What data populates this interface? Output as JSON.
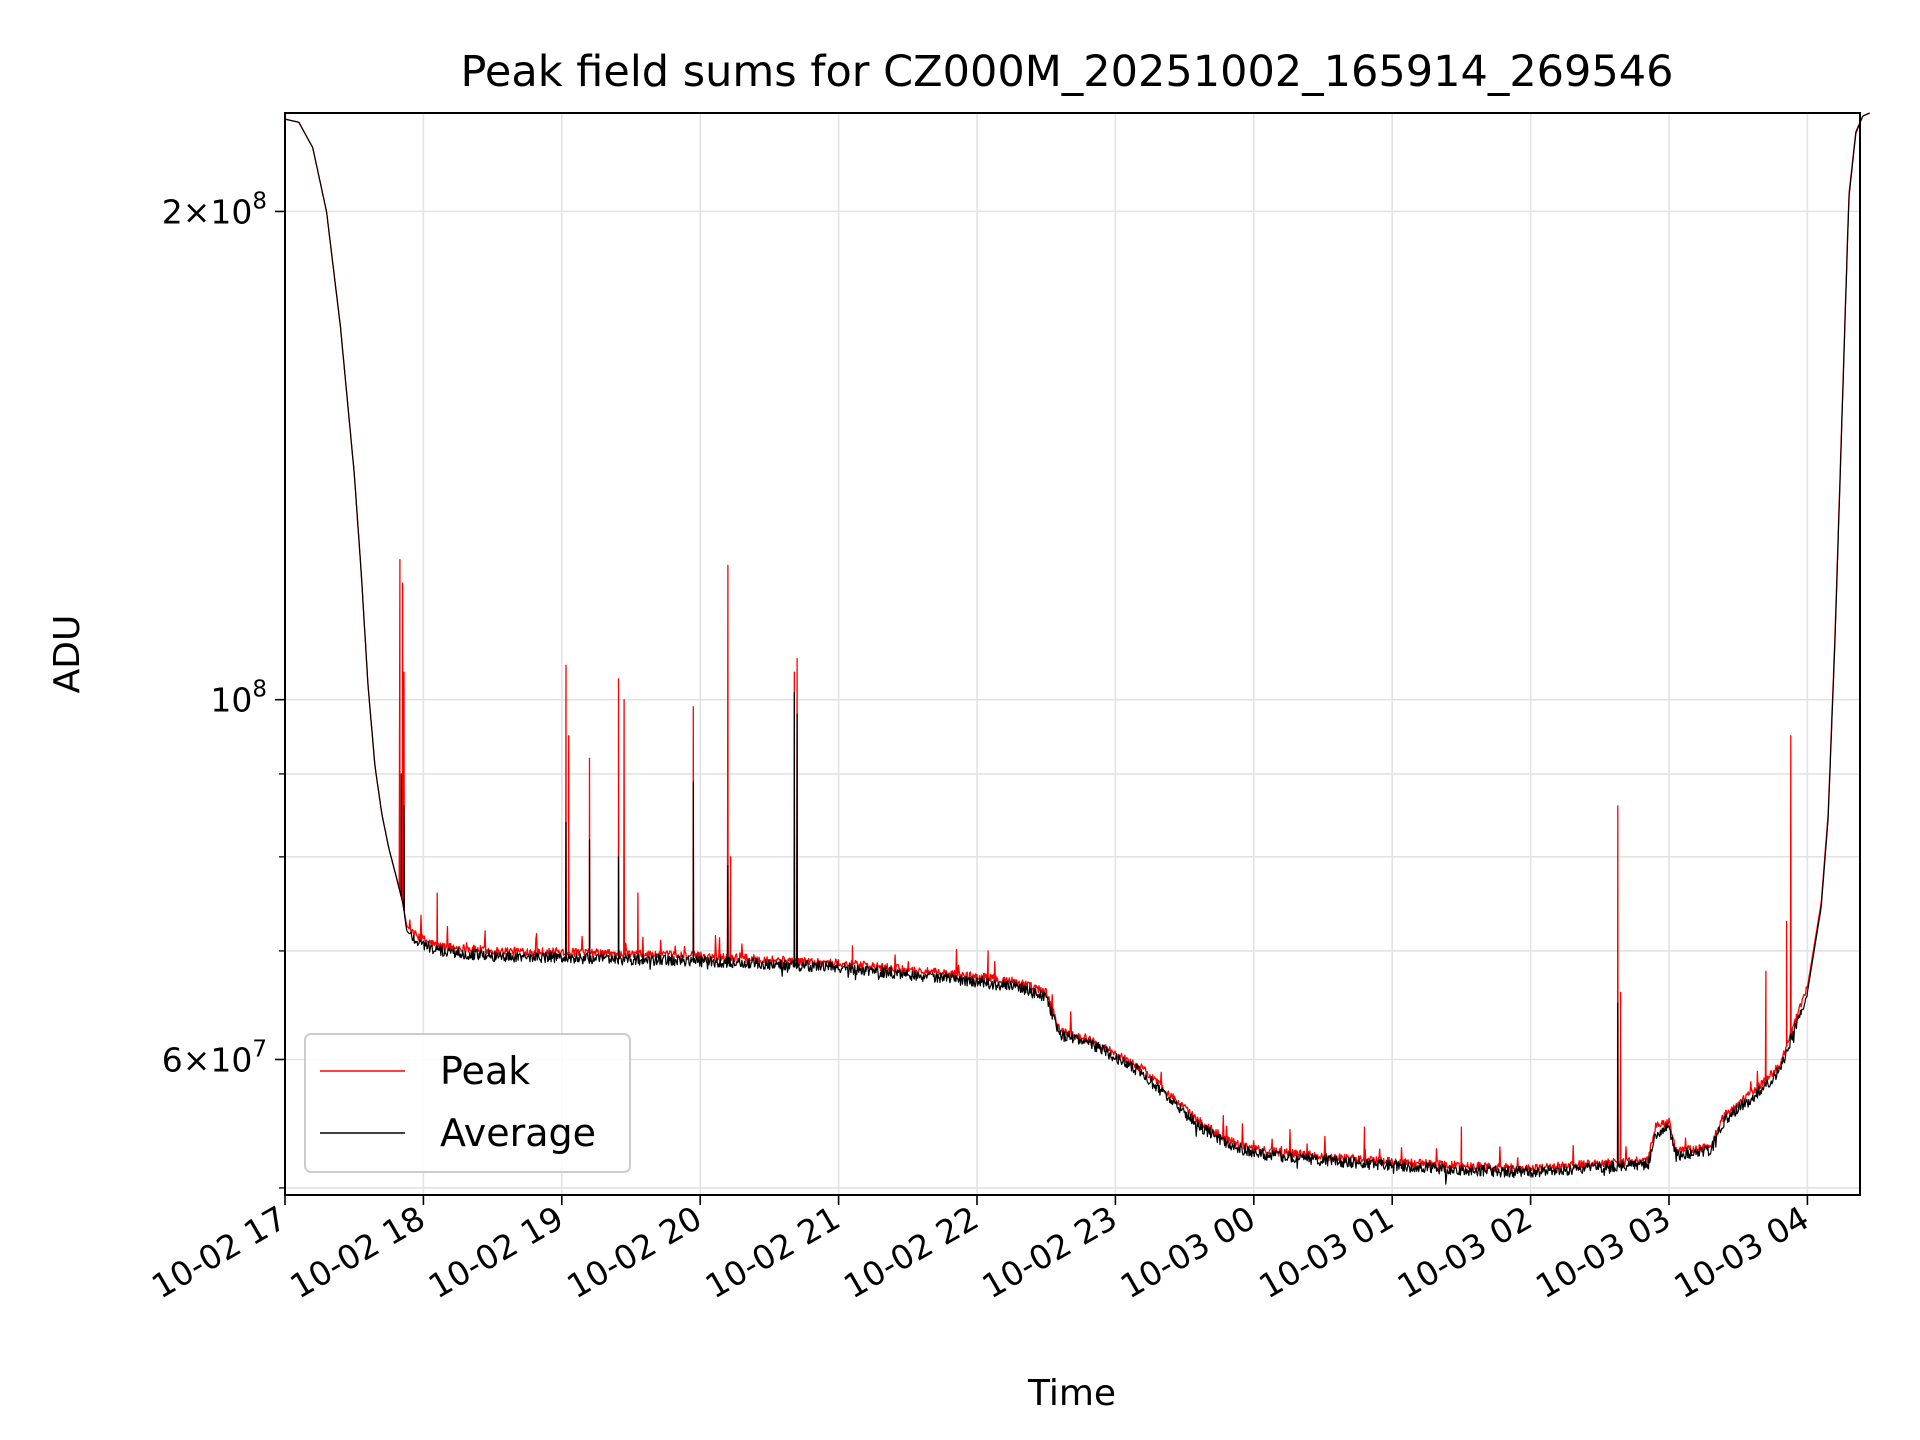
{
  "chart_data": {
    "type": "line",
    "title": "Peak field sums for CZ000M_20251002_165914_269546",
    "xlabel": "Time",
    "ylabel": "ADU",
    "yscale": "log",
    "ylim": [
      49500000,
      230000000
    ],
    "xlim_hours": [
      0,
      11.45
    ],
    "grid": true,
    "legend_position": "lower-left",
    "x_ticks": [
      {
        "label": "10-02 17",
        "hour": 0
      },
      {
        "label": "10-02 18",
        "hour": 1
      },
      {
        "label": "10-02 19",
        "hour": 2
      },
      {
        "label": "10-02 20",
        "hour": 3
      },
      {
        "label": "10-02 21",
        "hour": 4
      },
      {
        "label": "10-02 22",
        "hour": 5
      },
      {
        "label": "10-02 23",
        "hour": 6
      },
      {
        "label": "10-03 00",
        "hour": 7
      },
      {
        "label": "10-03 01",
        "hour": 8
      },
      {
        "label": "10-03 02",
        "hour": 9
      },
      {
        "label": "10-03 03",
        "hour": 10
      },
      {
        "label": "10-03 04",
        "hour": 11
      }
    ],
    "y_ticks": [
      {
        "base": "2×10",
        "exp": "8",
        "value": 200000000
      },
      {
        "base": "10",
        "exp": "8",
        "value": 100000000
      },
      {
        "base": "6×10",
        "exp": "7",
        "value": 60000000
      }
    ],
    "y_minor_ticks": [
      50000000,
      70000000,
      80000000,
      90000000
    ],
    "series": [
      {
        "name": "Peak",
        "color": "#ff0000",
        "base_curve": [
          [
            0.0,
            228000000
          ],
          [
            0.1,
            227000000
          ],
          [
            0.2,
            219000000
          ],
          [
            0.3,
            200000000
          ],
          [
            0.4,
            170000000
          ],
          [
            0.5,
            138000000
          ],
          [
            0.55,
            120000000
          ],
          [
            0.6,
            102000000
          ],
          [
            0.65,
            91000000
          ],
          [
            0.7,
            85000000
          ],
          [
            0.75,
            81000000
          ],
          [
            0.8,
            78000000
          ],
          [
            0.85,
            75000000
          ],
          [
            0.88,
            72500000
          ],
          [
            0.95,
            71500000
          ],
          [
            1.1,
            70500000
          ],
          [
            1.5,
            70000000
          ],
          [
            2.0,
            69900000
          ],
          [
            3.0,
            69500000
          ],
          [
            4.0,
            68800000
          ],
          [
            5.0,
            67500000
          ],
          [
            5.3,
            67000000
          ],
          [
            5.5,
            66000000
          ],
          [
            5.6,
            62500000
          ],
          [
            5.8,
            61800000
          ],
          [
            6.0,
            60500000
          ],
          [
            6.2,
            59200000
          ],
          [
            6.4,
            57000000
          ],
          [
            6.6,
            55000000
          ],
          [
            6.8,
            53600000
          ],
          [
            7.0,
            52800000
          ],
          [
            7.5,
            52300000
          ],
          [
            8.0,
            51900000
          ],
          [
            8.5,
            51600000
          ],
          [
            9.0,
            51400000
          ],
          [
            9.5,
            51800000
          ],
          [
            9.85,
            52000000
          ],
          [
            9.9,
            54500000
          ],
          [
            10.0,
            55000000
          ],
          [
            10.05,
            52700000
          ],
          [
            10.3,
            53000000
          ],
          [
            10.4,
            55500000
          ],
          [
            10.6,
            57200000
          ],
          [
            10.8,
            59500000
          ],
          [
            11.0,
            66500000
          ],
          [
            11.1,
            75000000
          ],
          [
            11.15,
            85000000
          ],
          [
            11.2,
            110000000
          ],
          [
            11.25,
            150000000
          ],
          [
            11.3,
            205000000
          ],
          [
            11.35,
            224000000
          ],
          [
            11.4,
            229000000
          ],
          [
            11.45,
            230000000
          ]
        ],
        "spikes": [
          [
            0.83,
            122000000
          ],
          [
            0.85,
            118000000
          ],
          [
            0.86,
            104000000
          ],
          [
            1.1,
            76000000
          ],
          [
            2.03,
            105000000
          ],
          [
            2.05,
            95000000
          ],
          [
            2.2,
            92000000
          ],
          [
            2.41,
            103000000
          ],
          [
            2.45,
            100000000
          ],
          [
            2.55,
            76000000
          ],
          [
            2.95,
            99000000
          ],
          [
            3.2,
            121000000
          ],
          [
            3.22,
            80000000
          ],
          [
            3.68,
            104000000
          ],
          [
            3.7,
            106000000
          ],
          [
            4.1,
            70500000
          ],
          [
            5.08,
            70000000
          ],
          [
            6.6,
            54700000
          ],
          [
            7.8,
            54500000
          ],
          [
            8.5,
            54500000
          ],
          [
            9.63,
            86000000
          ],
          [
            9.65,
            66000000
          ],
          [
            9.95,
            55000000
          ],
          [
            10.7,
            68000000
          ],
          [
            10.85,
            73000000
          ],
          [
            10.88,
            95000000
          ]
        ]
      },
      {
        "name": "Average",
        "color": "#000000",
        "base_curve": [
          [
            0.0,
            228000000
          ],
          [
            0.1,
            227000000
          ],
          [
            0.2,
            219000000
          ],
          [
            0.3,
            200000000
          ],
          [
            0.4,
            170000000
          ],
          [
            0.5,
            138000000
          ],
          [
            0.55,
            120000000
          ],
          [
            0.6,
            102000000
          ],
          [
            0.65,
            91000000
          ],
          [
            0.7,
            85000000
          ],
          [
            0.75,
            81000000
          ],
          [
            0.8,
            78000000
          ],
          [
            0.85,
            75000000
          ],
          [
            0.88,
            72000000
          ],
          [
            0.95,
            71000000
          ],
          [
            1.1,
            70000000
          ],
          [
            1.5,
            69500000
          ],
          [
            2.0,
            69300000
          ],
          [
            3.0,
            69000000
          ],
          [
            4.0,
            68400000
          ],
          [
            5.0,
            67000000
          ],
          [
            5.3,
            66500000
          ],
          [
            5.5,
            65500000
          ],
          [
            5.6,
            62200000
          ],
          [
            5.8,
            61500000
          ],
          [
            6.0,
            60200000
          ],
          [
            6.2,
            58800000
          ],
          [
            6.4,
            56600000
          ],
          [
            6.6,
            54600000
          ],
          [
            6.8,
            53300000
          ],
          [
            7.0,
            52500000
          ],
          [
            7.5,
            52000000
          ],
          [
            8.0,
            51600000
          ],
          [
            8.5,
            51300000
          ],
          [
            9.0,
            51100000
          ],
          [
            9.5,
            51500000
          ],
          [
            9.85,
            51700000
          ],
          [
            9.9,
            54000000
          ],
          [
            10.0,
            54500000
          ],
          [
            10.05,
            52400000
          ],
          [
            10.3,
            52700000
          ],
          [
            10.4,
            55000000
          ],
          [
            10.6,
            56800000
          ],
          [
            10.8,
            59000000
          ],
          [
            11.0,
            66000000
          ],
          [
            11.1,
            74500000
          ],
          [
            11.15,
            84500000
          ],
          [
            11.2,
            109000000
          ],
          [
            11.25,
            149000000
          ],
          [
            11.3,
            204000000
          ],
          [
            11.35,
            223500000
          ],
          [
            11.4,
            229000000
          ],
          [
            11.45,
            230000000
          ]
        ],
        "spikes": [
          [
            0.84,
            90000000
          ],
          [
            0.86,
            86000000
          ],
          [
            2.03,
            84000000
          ],
          [
            2.2,
            82000000
          ],
          [
            2.41,
            80000000
          ],
          [
            2.95,
            89000000
          ],
          [
            3.2,
            79000000
          ],
          [
            3.68,
            101000000
          ],
          [
            3.7,
            98000000
          ],
          [
            9.63,
            65000000
          ]
        ]
      }
    ]
  }
}
